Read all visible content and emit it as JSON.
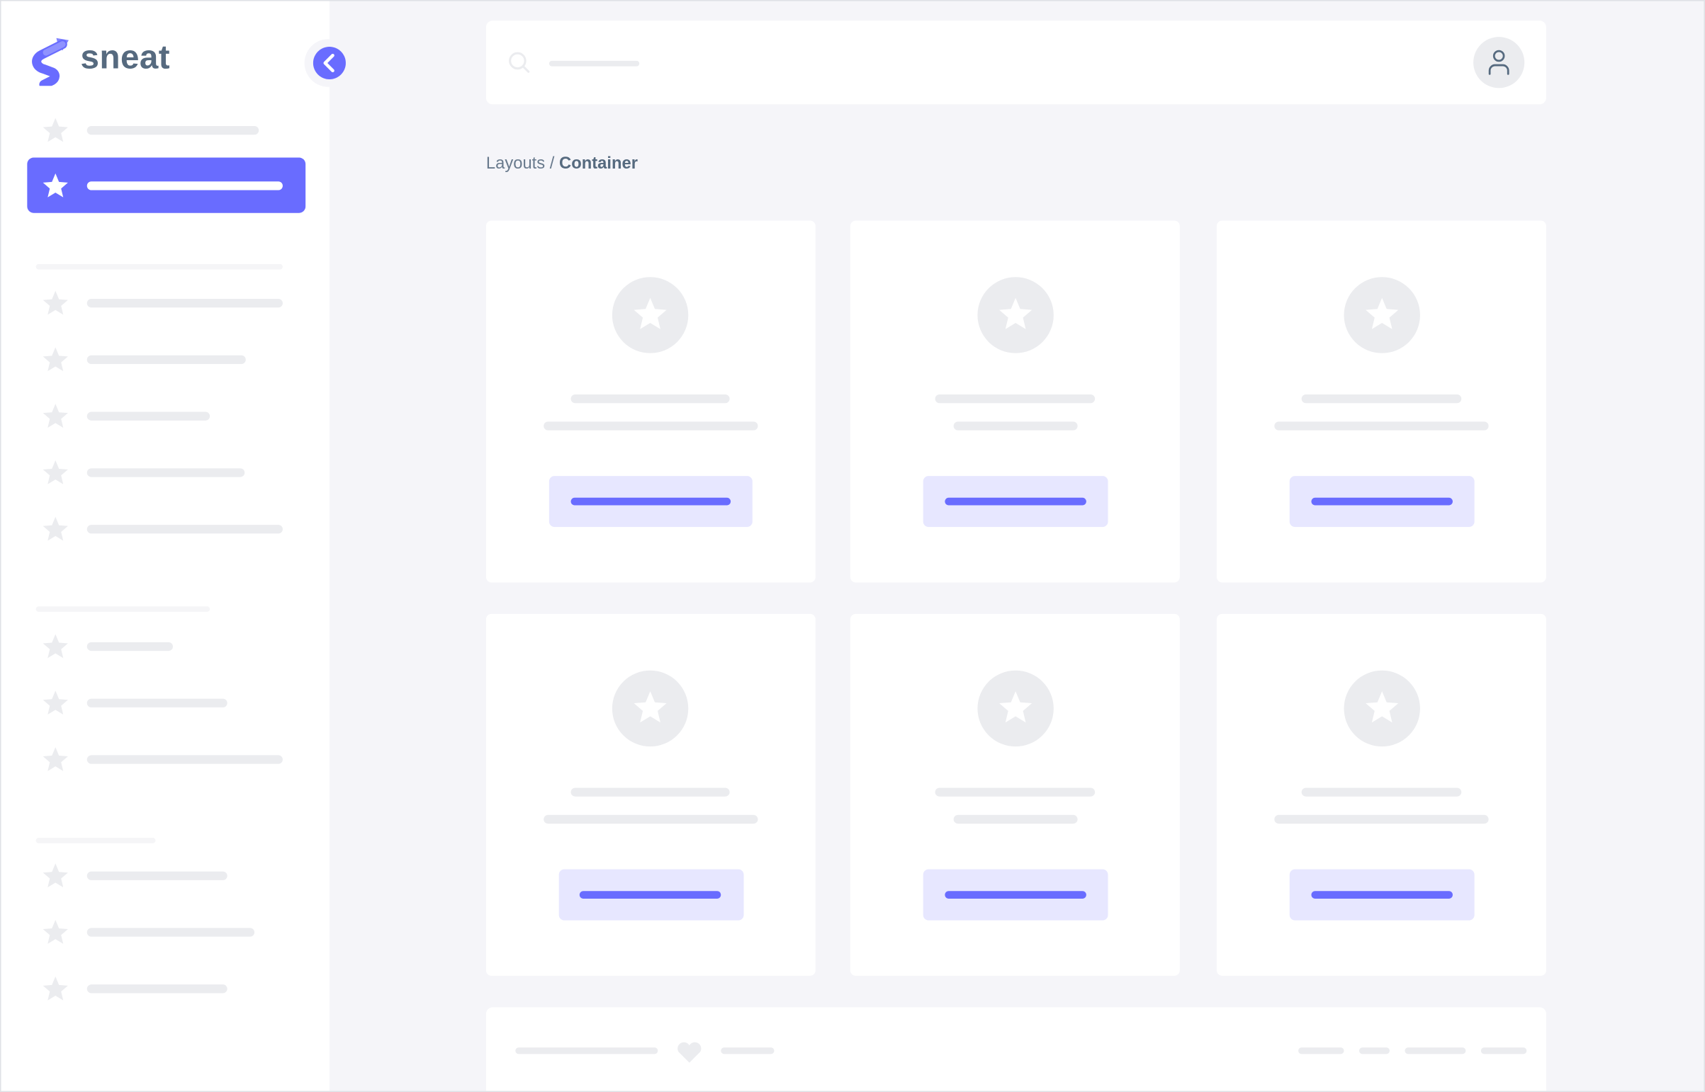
{
  "brand": {
    "name": "sneat",
    "logo_icon": "sneat-logo-icon"
  },
  "sidebar": {
    "collapse_icon": "chevron-left-icon",
    "active_index": 1
  },
  "navbar": {
    "search_icon": "search-icon",
    "avatar_icon": "user-icon"
  },
  "breadcrumb": {
    "parent": "Layouts",
    "separator": " / ",
    "current": "Container"
  },
  "footer": {
    "icon": "heart-icon"
  },
  "colors": {
    "primary": "#696cff",
    "primary_light": "#e7e7ff",
    "placeholder": "#ebecef",
    "background": "#f5f5f9",
    "heading": "#566a7f",
    "text": "#697a8d"
  }
}
